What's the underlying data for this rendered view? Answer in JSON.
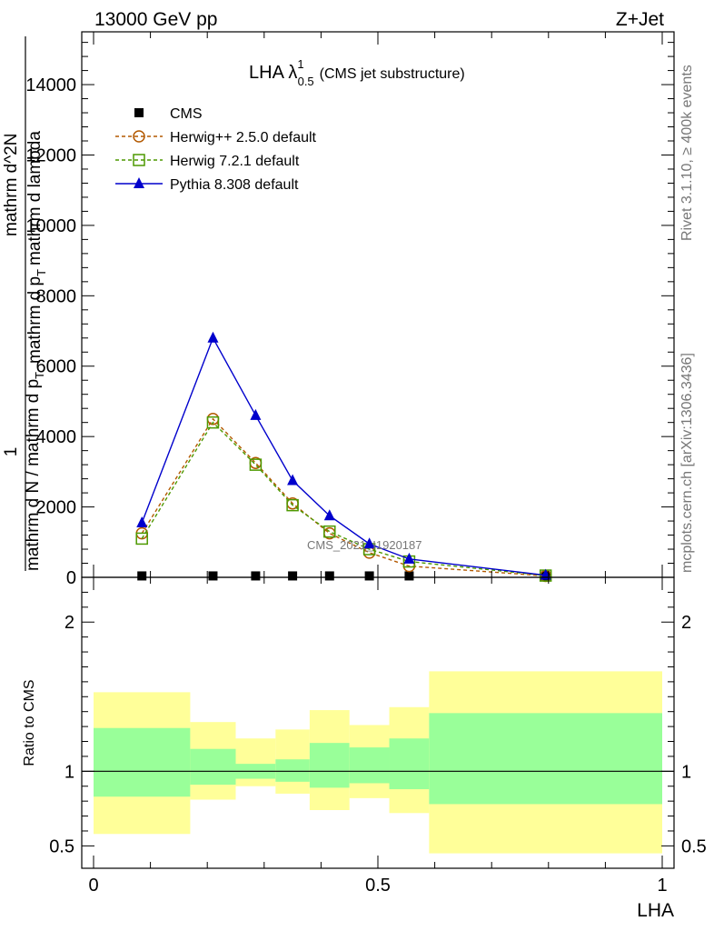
{
  "header": {
    "left": "13000 GeV pp",
    "right": "Z+Jet"
  },
  "side_labels": {
    "rivet": "Rivet 3.1.10, ≥ 400k events",
    "mcplots": "mcplots.cern.ch [arXiv:1306.3436]"
  },
  "watermark": "CMS_2021_I1920187",
  "chart_data": [
    {
      "type": "line",
      "title_main": "LHA λ",
      "title_sup": "1",
      "title_sub": "0.5",
      "title_rest": "(CMS jet substructure)",
      "ylabel_parts": [
        "1",
        "mathrm d N / mathrm d p",
        "T",
        "mathrm d^2N",
        "mathrm d p",
        "T",
        "mathrm d lambda"
      ],
      "ylim": [
        0,
        15500
      ],
      "yticks": [
        0,
        2000,
        4000,
        6000,
        8000,
        10000,
        12000,
        14000
      ],
      "ytick_labels": [
        "0",
        "2000",
        "4000",
        "6000",
        "8000",
        "10000",
        "12000",
        "14000"
      ],
      "xlim": [
        -0.02,
        1.02
      ],
      "legend_position": "top-left",
      "series": [
        {
          "name": "CMS",
          "style": "data",
          "color": "#000000",
          "x": [
            0.085,
            0.21,
            0.285,
            0.35,
            0.415,
            0.485,
            0.555,
            0.795
          ],
          "values": [
            40,
            40,
            40,
            40,
            40,
            40,
            40,
            40
          ]
        },
        {
          "name": "Herwig++ 2.5.0 default",
          "style": "circle-dashed",
          "color": "#b35900",
          "x": [
            0.085,
            0.21,
            0.285,
            0.35,
            0.415,
            0.485,
            0.555,
            0.795
          ],
          "values": [
            1250,
            4500,
            3250,
            2100,
            1250,
            700,
            320,
            40
          ]
        },
        {
          "name": "Herwig 7.2.1 default",
          "style": "square-dashed",
          "color": "#4d9900",
          "x": [
            0.085,
            0.21,
            0.285,
            0.35,
            0.415,
            0.485,
            0.555,
            0.795
          ],
          "values": [
            1100,
            4400,
            3200,
            2050,
            1300,
            800,
            450,
            50
          ]
        },
        {
          "name": "Pythia 8.308 default",
          "style": "triangle-solid",
          "color": "#0000cc",
          "x": [
            0.085,
            0.21,
            0.285,
            0.35,
            0.415,
            0.485,
            0.555,
            0.795
          ],
          "values": [
            1550,
            6800,
            4600,
            2750,
            1750,
            950,
            520,
            60
          ]
        }
      ]
    },
    {
      "type": "area",
      "ylabel": "Ratio to CMS",
      "xlabel": "LHA",
      "ylim": [
        0.35,
        2.3
      ],
      "yticks": [
        0.5,
        1,
        2
      ],
      "ytick_labels": [
        "0.5",
        "1",
        "2"
      ],
      "xticks": [
        0,
        0.5,
        1
      ],
      "xtick_labels": [
        "0",
        "0.5",
        "1"
      ],
      "reference_line": 1,
      "bins": [
        {
          "x0": 0.0,
          "x1": 0.17,
          "inner": [
            0.83,
            1.29
          ],
          "outer": [
            0.58,
            1.53
          ]
        },
        {
          "x0": 0.17,
          "x1": 0.25,
          "inner": [
            0.91,
            1.15
          ],
          "outer": [
            0.81,
            1.33
          ]
        },
        {
          "x0": 0.25,
          "x1": 0.32,
          "inner": [
            0.95,
            1.05
          ],
          "outer": [
            0.9,
            1.22
          ]
        },
        {
          "x0": 0.32,
          "x1": 0.38,
          "inner": [
            0.93,
            1.08
          ],
          "outer": [
            0.85,
            1.28
          ]
        },
        {
          "x0": 0.38,
          "x1": 0.45,
          "inner": [
            0.89,
            1.19
          ],
          "outer": [
            0.74,
            1.41
          ]
        },
        {
          "x0": 0.45,
          "x1": 0.52,
          "inner": [
            0.92,
            1.16
          ],
          "outer": [
            0.82,
            1.31
          ]
        },
        {
          "x0": 0.52,
          "x1": 0.59,
          "inner": [
            0.88,
            1.22
          ],
          "outer": [
            0.72,
            1.43
          ]
        },
        {
          "x0": 0.59,
          "x1": 1.0,
          "inner": [
            0.78,
            1.39
          ],
          "outer": [
            0.45,
            1.67
          ]
        }
      ],
      "colors": {
        "inner": "#99ff99",
        "outer": "#ffff99"
      }
    }
  ]
}
